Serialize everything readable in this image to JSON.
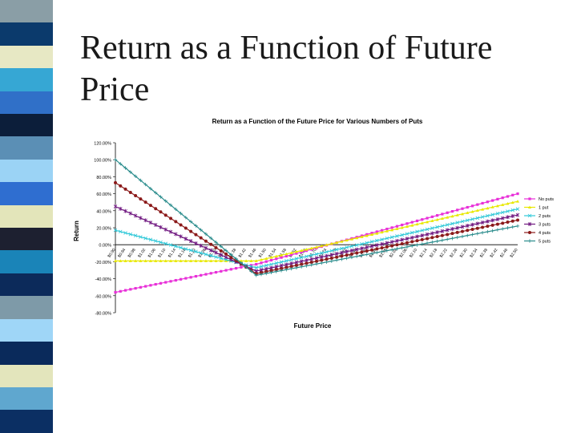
{
  "slide": {
    "title": "Return as a Function of Future Price",
    "stripe_colors": [
      "#8a9ea6",
      "#0b3a6c",
      "#e7e8c4",
      "#36a7d4",
      "#3070c8",
      "#0c1e3a",
      "#5b8fb5",
      "#9bd3f5",
      "#2f6ed0",
      "#e3e5ba",
      "#1d2030",
      "#1a84b8",
      "#0c2a5a",
      "#7e9aa8",
      "#9fd6f7",
      "#0a2a5b",
      "#e3e5bc",
      "#5fa7cf",
      "#0b2f63"
    ]
  },
  "chart_data": {
    "type": "line",
    "title": "Return as a Function of the Future Price for Various Numbers of Puts",
    "xlabel": "Future Price",
    "ylabel": "Return",
    "ylim": [
      -80,
      120
    ],
    "yticks": [
      "120.00%",
      "100.00%",
      "80.00%",
      "60.00%",
      "40.00%",
      "20.00%",
      "0.00%",
      "-20.00%",
      "-40.00%",
      "-60.00%",
      "-80.00%"
    ],
    "x": [
      "$0.90",
      "$0.92",
      "$0.94",
      "$0.96",
      "$0.98",
      "$1.00",
      "$1.02",
      "$1.04",
      "$1.06",
      "$1.08",
      "$1.10",
      "$1.12",
      "$1.14",
      "$1.16",
      "$1.18",
      "$1.20",
      "$1.22",
      "$1.24",
      "$1.26",
      "$1.28",
      "$1.30",
      "$1.32",
      "$1.34",
      "$1.36",
      "$1.38",
      "$1.40",
      "$1.42",
      "$1.44",
      "$1.46",
      "$1.48",
      "$1.50",
      "$1.52",
      "$1.54",
      "$1.56",
      "$1.58",
      "$1.60",
      "$1.62",
      "$1.64",
      "$1.66",
      "$1.68",
      "$1.70",
      "$1.72",
      "$1.74",
      "$1.76",
      "$1.78",
      "$1.80",
      "$1.82",
      "$1.84",
      "$1.86",
      "$1.88",
      "$1.90",
      "$1.92",
      "$1.94",
      "$1.96",
      "$1.98",
      "$2.00",
      "$2.02",
      "$2.04",
      "$2.06",
      "$2.08",
      "$2.10",
      "$2.12",
      "$2.14",
      "$2.16",
      "$2.18",
      "$2.20",
      "$2.22",
      "$2.24",
      "$2.26",
      "$2.28",
      "$2.30",
      "$2.32",
      "$2.34",
      "$2.36",
      "$2.38",
      "$2.40",
      "$2.42",
      "$2.44",
      "$2.46",
      "$2.48",
      "$2.50"
    ],
    "kink_index": 28,
    "legend_position": "right",
    "series": [
      {
        "name": "No puts",
        "color": "#e830d8",
        "marker": "square",
        "start": -56,
        "kink": -23,
        "end": 60
      },
      {
        "name": "1 put",
        "color": "#e8e800",
        "marker": "triangle",
        "start": -19,
        "kink": -19,
        "end": 51
      },
      {
        "name": "2 puts",
        "color": "#30c8d8",
        "marker": "x",
        "start": 17,
        "kink": -27,
        "end": 42
      },
      {
        "name": "3 puts",
        "color": "#701880",
        "marker": "star",
        "start": 45,
        "kink": -31,
        "end": 35
      },
      {
        "name": "4 puts",
        "color": "#8b1a1a",
        "marker": "circle",
        "start": 73,
        "kink": -34,
        "end": 29
      },
      {
        "name": "5 puts",
        "color": "#2a8c8c",
        "marker": "plus",
        "start": 100,
        "kink": -36,
        "end": 22
      }
    ]
  }
}
